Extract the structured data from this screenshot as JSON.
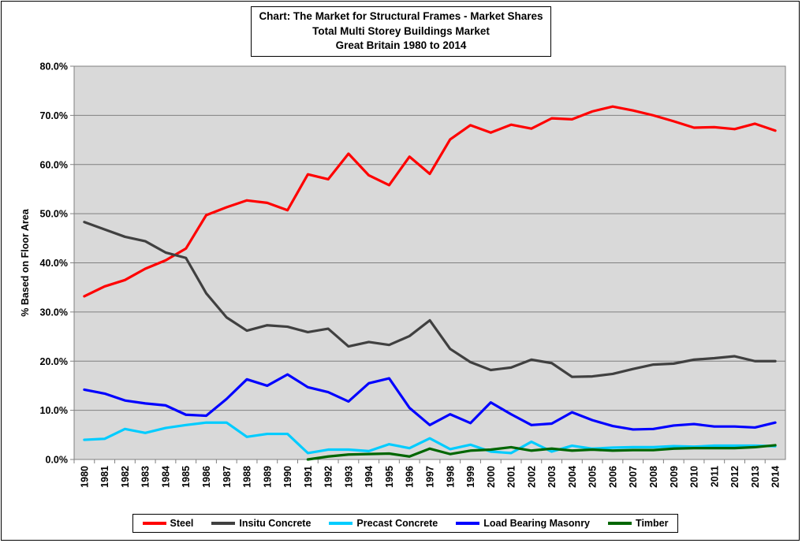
{
  "chart_data": {
    "type": "line",
    "title_lines": [
      "Chart: The Market for Structural Frames - Market Shares",
      "Total Multi Storey Buildings Market",
      "Great Britain 1980 to 2014"
    ],
    "ylabel": "% Based on Floor Area",
    "xlabel": "",
    "ylim": [
      0,
      80
    ],
    "yticks": [
      "0.0%",
      "10.0%",
      "20.0%",
      "30.0%",
      "40.0%",
      "50.0%",
      "60.0%",
      "70.0%",
      "80.0%"
    ],
    "categories": [
      "1980",
      "1981",
      "1982",
      "1983",
      "1984",
      "1985",
      "1986",
      "1987",
      "1988",
      "1989",
      "1990",
      "1991",
      "1992",
      "1993",
      "1994",
      "1995",
      "1996",
      "1997",
      "1998",
      "1999",
      "2000",
      "2001",
      "2002",
      "2003",
      "2004",
      "2005",
      "2006",
      "2007",
      "2008",
      "2009",
      "2010",
      "2011",
      "2012",
      "2013",
      "2014"
    ],
    "grid": true,
    "legend_position": "bottom",
    "series": [
      {
        "name": "Steel",
        "color": "#ff0000",
        "values": [
          33.2,
          35.2,
          36.5,
          38.8,
          40.5,
          42.9,
          49.7,
          51.3,
          52.7,
          52.2,
          50.7,
          58.0,
          57.0,
          62.2,
          57.8,
          55.8,
          61.6,
          58.1,
          65.1,
          68.0,
          66.5,
          68.1,
          67.3,
          69.4,
          69.2,
          70.8,
          71.8,
          71.0,
          70.0,
          68.8,
          67.5,
          67.6,
          67.2,
          68.3,
          66.9
        ]
      },
      {
        "name": "Insitu Concrete",
        "color": "#404040",
        "values": [
          48.3,
          46.8,
          45.3,
          44.4,
          42.1,
          41.0,
          33.8,
          28.9,
          26.2,
          27.3,
          27.0,
          25.9,
          26.6,
          23.0,
          23.9,
          23.3,
          25.1,
          28.3,
          22.5,
          19.8,
          18.2,
          18.7,
          20.3,
          19.6,
          16.8,
          16.9,
          17.4,
          18.4,
          19.3,
          19.5,
          20.3,
          20.6,
          21.0,
          20.0,
          20.0
        ]
      },
      {
        "name": "Precast Concrete",
        "color": "#00ccff",
        "values": [
          4.0,
          4.2,
          6.2,
          5.4,
          6.4,
          7.0,
          7.5,
          7.5,
          4.6,
          5.2,
          5.2,
          1.3,
          2.0,
          2.0,
          1.7,
          3.1,
          2.3,
          4.3,
          2.1,
          3.0,
          1.6,
          1.3,
          3.6,
          1.6,
          2.8,
          2.2,
          2.4,
          2.5,
          2.5,
          2.7,
          2.6,
          2.8,
          2.8,
          2.8,
          2.7
        ]
      },
      {
        "name": "Load Bearing Masonry",
        "color": "#0000ff",
        "values": [
          14.2,
          13.4,
          12.0,
          11.4,
          11.0,
          9.1,
          8.9,
          12.3,
          16.3,
          15.0,
          17.3,
          14.7,
          13.7,
          11.8,
          15.5,
          16.5,
          10.5,
          7.0,
          9.2,
          7.4,
          11.6,
          9.2,
          7.0,
          7.3,
          9.6,
          8.0,
          6.8,
          6.1,
          6.2,
          6.9,
          7.2,
          6.7,
          6.7,
          6.5,
          7.5
        ]
      },
      {
        "name": "Timber",
        "color": "#006600",
        "values": [
          null,
          null,
          null,
          null,
          null,
          null,
          null,
          null,
          null,
          null,
          null,
          0.0,
          0.6,
          1.0,
          1.1,
          1.2,
          0.6,
          2.2,
          1.1,
          1.8,
          2.0,
          2.5,
          1.8,
          2.2,
          1.8,
          2.0,
          1.8,
          1.9,
          1.9,
          2.2,
          2.3,
          2.3,
          2.3,
          2.5,
          2.9
        ]
      }
    ]
  }
}
